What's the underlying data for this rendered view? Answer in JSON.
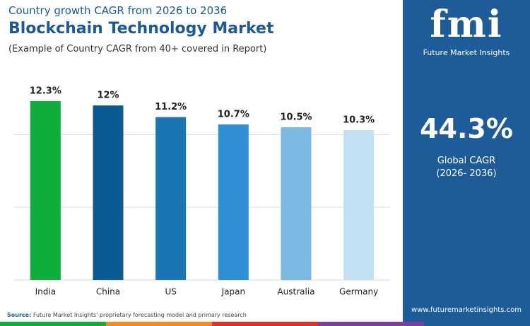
{
  "chart_data": {
    "type": "bar",
    "subtitle": "Country growth CAGR from 2026 to 2036",
    "title": "Blockchain Technology Market",
    "note": "(Example of Country CAGR from 40+ covered in Report)",
    "categories": [
      "India",
      "China",
      "US",
      "Japan",
      "Australia",
      "Germany"
    ],
    "values": [
      12.3,
      12,
      11.2,
      10.7,
      10.5,
      10.3
    ],
    "value_labels": [
      "12.3%",
      "12%",
      "11.2%",
      "10.7%",
      "10.5%",
      "10.3%"
    ],
    "colors": [
      "#0fae3c",
      "#0b5a94",
      "#1b74b3",
      "#2f90d6",
      "#7bb9e2",
      "#c4e0f4"
    ],
    "ylim": [
      0,
      14
    ],
    "yticks": [
      0,
      5,
      10
    ],
    "grid": true,
    "ytick_labels": false
  },
  "side_panel": {
    "logo": "fmi",
    "brand": "Future Market Insights",
    "global_cagr": "44.3%",
    "global_cagr_label": "Global CAGR",
    "period": "(2026- 2036)",
    "website": "www.futuremarketinsights.com"
  },
  "source": {
    "label": "Source:",
    "text": "Future Market Insights' proprietary forecasting model and primary research"
  }
}
